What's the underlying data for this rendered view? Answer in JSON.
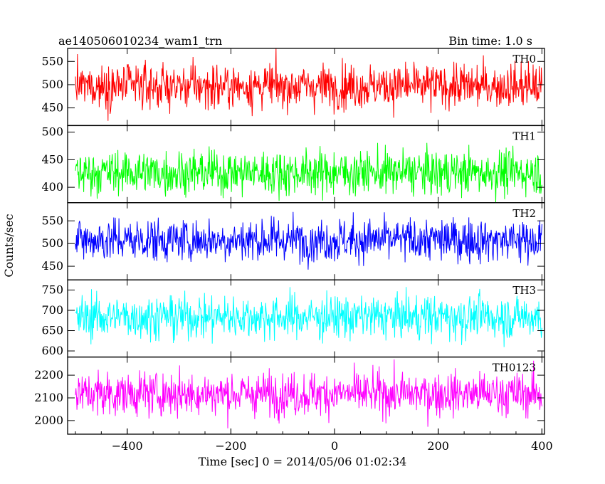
{
  "header": {
    "title": "ae140506010234_wam1_trn",
    "bin_time": "Bin time: 1.0 s"
  },
  "chart_data": {
    "type": "line",
    "xlabel": "Time [sec] 0 = 2014/05/06 01:02:34",
    "ylabel": "Counts/sec",
    "xlim": [
      -515,
      405
    ],
    "xticks": [
      -400,
      -200,
      0,
      200,
      400
    ],
    "x_start": -500,
    "x_end": 400,
    "bin_time_s": 1.0,
    "panels": [
      {
        "name": "TH0",
        "color": "#ff0000",
        "ylim": [
          412,
          578
        ],
        "yticks": [
          450,
          500,
          550
        ],
        "mean": 497,
        "sigma": 24
      },
      {
        "name": "TH1",
        "color": "#00ff00",
        "ylim": [
          372,
          512
        ],
        "yticks": [
          400,
          450,
          500
        ],
        "mean": 427,
        "sigma": 20
      },
      {
        "name": "TH2",
        "color": "#0000ff",
        "ylim": [
          420,
          590
        ],
        "yticks": [
          450,
          500,
          550
        ],
        "mean": 508,
        "sigma": 24
      },
      {
        "name": "TH3",
        "color": "#00ffff",
        "ylim": [
          585,
          775
        ],
        "yticks": [
          600,
          650,
          700,
          750
        ],
        "mean": 684,
        "sigma": 27
      },
      {
        "name": "TH0123",
        "color": "#ff00ff",
        "ylim": [
          1940,
          2280
        ],
        "yticks": [
          2000,
          2100,
          2200
        ],
        "mean": 2118,
        "sigma": 48
      }
    ]
  }
}
